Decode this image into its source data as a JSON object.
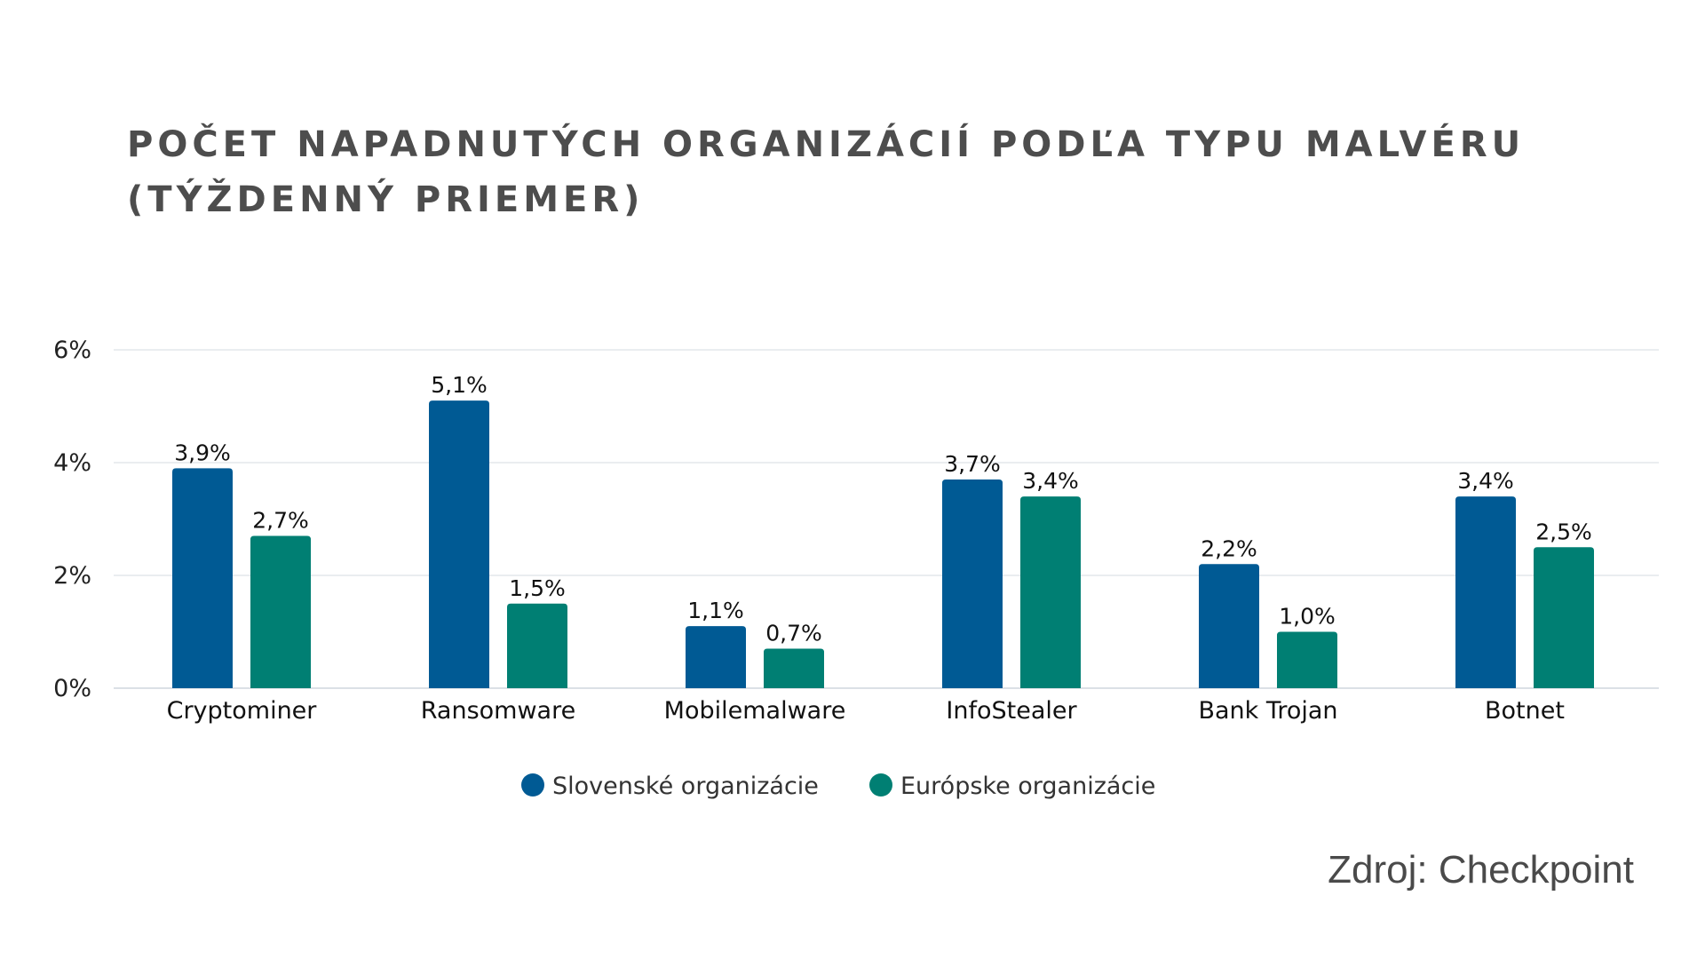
{
  "title_lines": [
    "POČET NAPADNUTÝCH ORGANIZÁCIÍ PODĽA TYPU MALVÉRU",
    "(TÝŽDENNÝ PRIEMER)"
  ],
  "source": "Zdroj: Checkpoint",
  "chart_data": {
    "type": "bar",
    "title": "POČET NAPADNUTÝCH ORGANIZÁCIÍ PODĽA TYPU MALVÉRU (TÝŽDENNÝ PRIEMER)",
    "categories": [
      "Cryptominer",
      "Ransomware",
      "Mobilemalware",
      "InfoStealer",
      "Bank Trojan",
      "Botnet"
    ],
    "series": [
      {
        "name": "Slovenské organizácie",
        "color": "#005a94",
        "values": [
          3.9,
          5.1,
          1.1,
          3.7,
          2.2,
          3.4
        ],
        "labels": [
          "3,9%",
          "5,1%",
          "1,1%",
          "3,7%",
          "2,2%",
          "3,4%"
        ]
      },
      {
        "name": "Európske organizácie",
        "color": "#007f73",
        "values": [
          2.7,
          1.5,
          0.7,
          3.4,
          1.0,
          2.5
        ],
        "labels": [
          "2,7%",
          "1,5%",
          "0,7%",
          "3,4%",
          "1,0%",
          "2,5%"
        ]
      }
    ],
    "yticks": [
      {
        "value": 0,
        "label": "0%"
      },
      {
        "value": 2,
        "label": "2%"
      },
      {
        "value": 4,
        "label": "4%"
      },
      {
        "value": 6,
        "label": "6%"
      }
    ],
    "ylim": [
      0,
      6
    ],
    "xlabel": "",
    "ylabel": "",
    "grid": true,
    "legend_position": "bottom-center"
  }
}
